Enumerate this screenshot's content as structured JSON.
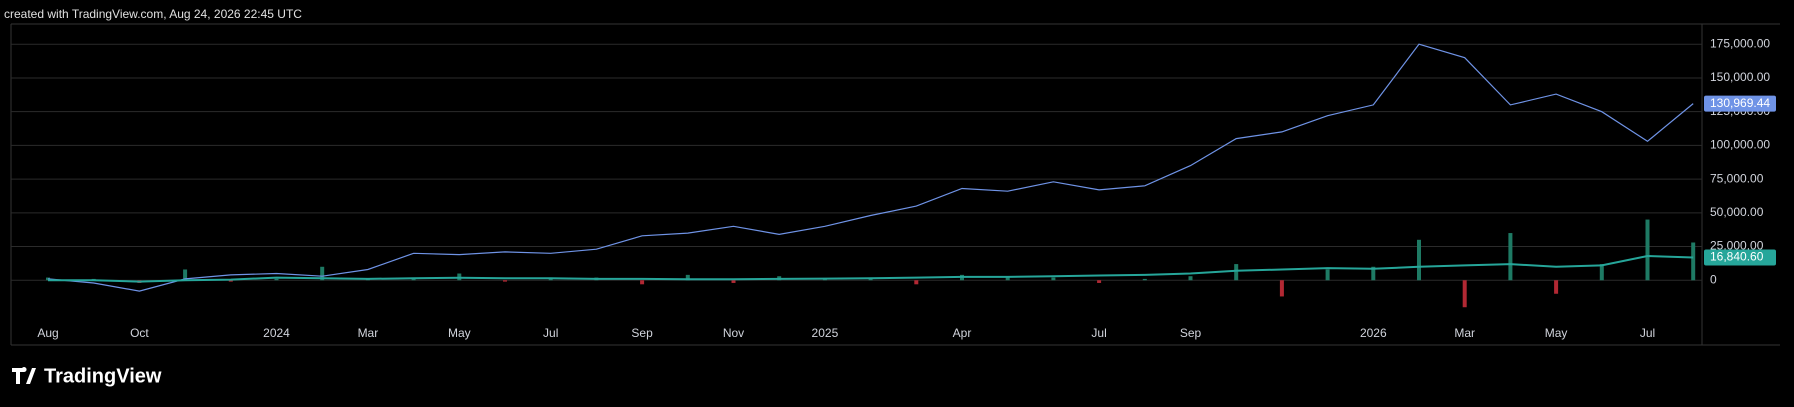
{
  "chart_data": {
    "type": "line",
    "caption": "created with TradingView.com, Aug 24, 2026 22:45 UTC",
    "brand": "TradingView",
    "categories": [
      "Aug",
      null,
      "Oct",
      null,
      null,
      "2024",
      null,
      "Mar",
      null,
      "May",
      null,
      "Jul",
      null,
      "Sep",
      null,
      "Nov",
      null,
      "2025",
      null,
      null,
      "Apr",
      null,
      null,
      "Jul",
      null,
      "Sep",
      null,
      null,
      null,
      "2026",
      null,
      "Mar",
      null,
      "May",
      null,
      "Jul",
      null
    ],
    "ylim": [
      -48000,
      190000
    ],
    "yticks": [
      0,
      {
        "value": 25000,
        "label": "25,000.00"
      },
      {
        "value": 50000,
        "label": "50,000.00"
      },
      {
        "value": 75000,
        "label": "75,000.00"
      },
      {
        "value": 100000,
        "label": "100,000.00"
      },
      {
        "value": 125000,
        "label": "125,000.00"
      },
      {
        "value": 150000,
        "label": "150,000.00"
      },
      {
        "value": 175000,
        "label": "175,000.00"
      }
    ],
    "grid": true,
    "series": [
      {
        "type": "line",
        "color": "#6f93e6",
        "values": [
          1000,
          -2000,
          -8000,
          1000,
          4000,
          5000,
          3000,
          8000,
          20000,
          19000,
          21000,
          20000,
          23000,
          33000,
          35000,
          40000,
          34000,
          40000,
          48000,
          55000,
          68000,
          66000,
          73000,
          67000,
          70000,
          85000,
          105000,
          110000,
          122000,
          130000,
          175000,
          165000,
          130000,
          138000,
          125000,
          103000,
          130969.44
        ],
        "value_labels": [
          null,
          null,
          null,
          null,
          null,
          null,
          null,
          null,
          null,
          null,
          null,
          null,
          null,
          null,
          null,
          null,
          null,
          null,
          null,
          null,
          null,
          null,
          null,
          null,
          null,
          null,
          null,
          null,
          null,
          null,
          null,
          null,
          null,
          null,
          null,
          null,
          "130,969.44"
        ]
      },
      {
        "type": "line",
        "color": "#26a69a",
        "values": [
          0,
          0,
          -1000,
          0,
          500,
          2000,
          1500,
          1000,
          1500,
          1800,
          1500,
          1500,
          1000,
          1000,
          800,
          800,
          1000,
          1200,
          1500,
          2000,
          2500,
          2500,
          3000,
          3500,
          4000,
          5000,
          7000,
          8000,
          9000,
          8500,
          10000,
          11000,
          12000,
          10000,
          11000,
          18000,
          16840.6
        ],
        "value_labels": [
          null,
          null,
          null,
          null,
          null,
          null,
          null,
          null,
          null,
          null,
          null,
          null,
          null,
          null,
          null,
          null,
          null,
          null,
          null,
          null,
          null,
          null,
          null,
          null,
          null,
          null,
          null,
          null,
          null,
          null,
          null,
          null,
          null,
          null,
          null,
          null,
          "16,840.60"
        ]
      },
      {
        "type": "bar",
        "color": "#1e7a64",
        "color_down": "#b22833",
        "values": [
          2000,
          1000,
          -2000,
          8000,
          -1000,
          1000,
          10000,
          1000,
          2000,
          5000,
          -1000,
          1000,
          2000,
          -3000,
          4000,
          -2000,
          3000,
          1000,
          2000,
          -3000,
          4000,
          3000,
          2000,
          -2000,
          1000,
          3000,
          12000,
          -12000,
          8000,
          10000,
          30000,
          -20000,
          35000,
          -10000,
          12000,
          45000,
          28000
        ]
      }
    ]
  }
}
